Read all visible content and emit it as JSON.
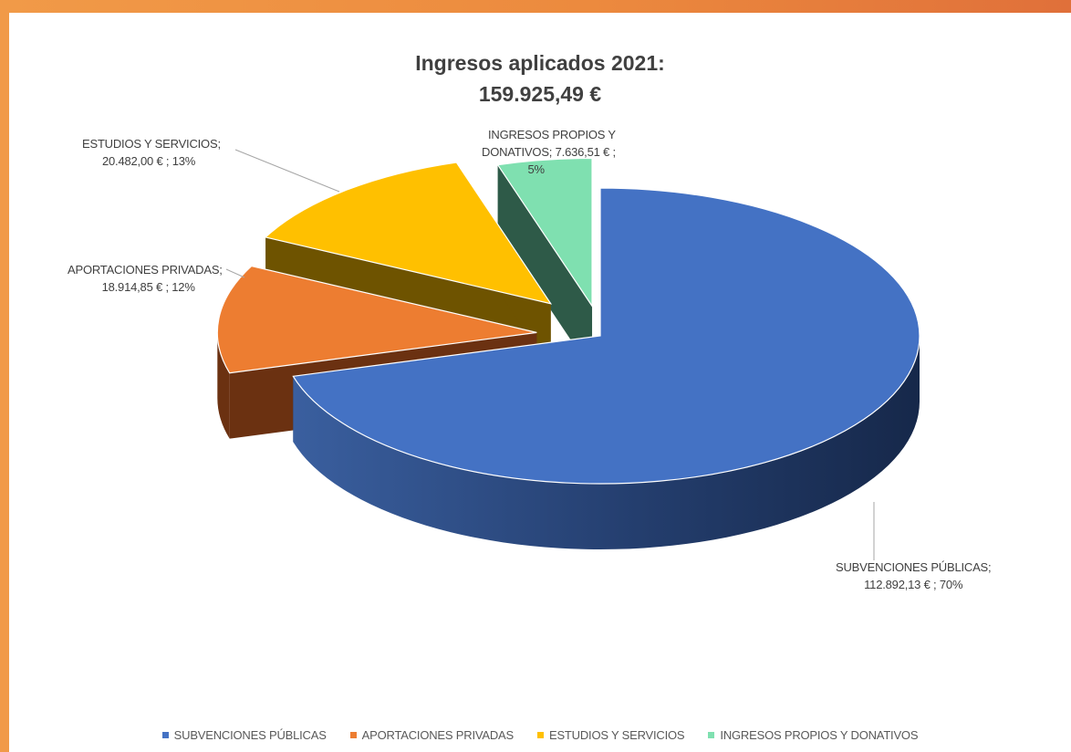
{
  "chart_data": {
    "type": "pie",
    "title": "Ingresos aplicados 2021:",
    "subtitle": "159.925,49 €",
    "legend_position": "bottom",
    "slices": [
      {
        "name": "SUBVENCIONES PÚBLICAS",
        "value": 112892.13,
        "percent": 70,
        "label_name": "SUBVENCIONES PÚBLICAS;",
        "label_value": "112.892,13 € ; 70%",
        "color": "#4472c4",
        "side_color": "#1f3864"
      },
      {
        "name": "APORTACIONES PRIVADAS",
        "value": 18914.85,
        "percent": 12,
        "label_name": "APORTACIONES PRIVADAS;",
        "label_value": "18.914,85 € ; 12%",
        "color": "#ed7d31",
        "side_color": "#6b3111"
      },
      {
        "name": "ESTUDIOS Y SERVICIOS",
        "value": 20482.0,
        "percent": 13,
        "label_name": "ESTUDIOS Y SERVICIOS;",
        "label_value": "20.482,00 € ; 13%",
        "color": "#ffc000",
        "side_color": "#6e5300"
      },
      {
        "name": "INGRESOS PROPIOS Y DONATIVOS",
        "value": 7636.51,
        "percent": 5,
        "label_lines": [
          "INGRESOS PROPIOS Y",
          "DONATIVOS;  7.636,51 € ;",
          "5%"
        ],
        "color": "#7fe0b0",
        "side_color": "#2e5a48"
      }
    ]
  }
}
